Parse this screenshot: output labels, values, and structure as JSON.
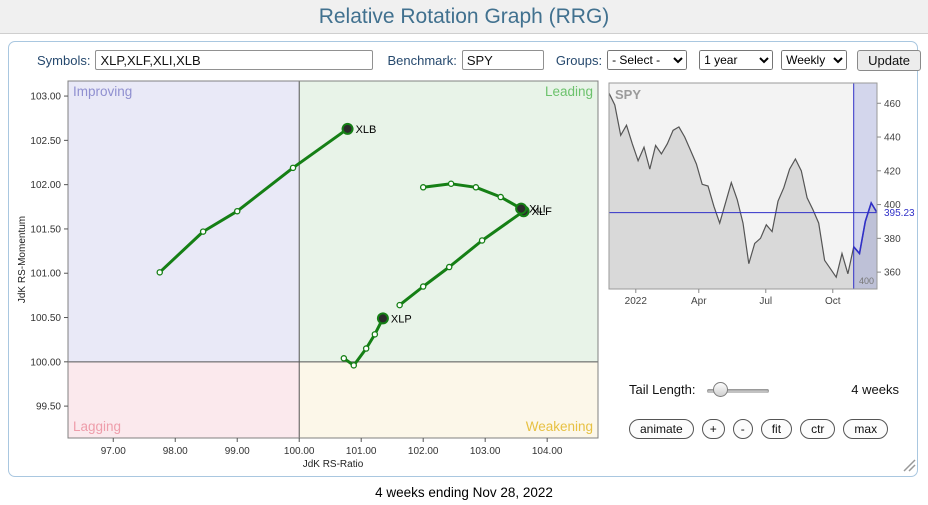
{
  "header": {
    "title": "Relative Rotation Graph (RRG)"
  },
  "toolbar": {
    "symbols_label": "Symbols:",
    "symbols_value": "XLP,XLF,XLI,XLB",
    "benchmark_label": "Benchmark:",
    "benchmark_value": "SPY",
    "groups_label": "Groups:",
    "groups_value": "- Select -",
    "period_value": "1 year",
    "frequency_value": "Weekly",
    "update_label": "Update"
  },
  "chart_data": [
    {
      "id": "rrg",
      "type": "scatter",
      "xlabel": "JdK RS-Ratio",
      "ylabel": "JdK RS-Momentum",
      "x_ticks": [
        97,
        98,
        99,
        100,
        101,
        102,
        103,
        104
      ],
      "y_ticks": [
        99.5,
        100,
        100.5,
        101,
        101.5,
        102,
        102.5,
        103
      ],
      "xlim": [
        96.27,
        104.82
      ],
      "ylim": [
        99.14,
        103.17
      ],
      "center": [
        100,
        100
      ],
      "trail_color": "#157f15",
      "quadrants": {
        "improving": {
          "label": "Improving",
          "bg": "#e9e9f7",
          "color": "#8f8fd0"
        },
        "leading": {
          "label": "Leading",
          "bg": "#e8f3e8",
          "color": "#6cc26c"
        },
        "lagging": {
          "label": "Lagging",
          "bg": "#fbe9ed",
          "color": "#ee9daa"
        },
        "weakening": {
          "label": "Weakening",
          "bg": "#fcf7e9",
          "color": "#e7c143"
        }
      },
      "series": [
        {
          "name": "XLB",
          "points": [
            [
              97.75,
              101.01
            ],
            [
              98.45,
              101.47
            ],
            [
              99.0,
              101.7
            ],
            [
              99.9,
              102.19
            ],
            [
              100.78,
              102.63
            ]
          ]
        },
        {
          "name": "XLP",
          "points": [
            [
              100.72,
              100.04
            ],
            [
              100.88,
              99.96
            ],
            [
              101.08,
              100.15
            ],
            [
              101.22,
              100.31
            ],
            [
              101.35,
              100.49
            ]
          ]
        },
        {
          "name": "XLF",
          "points": [
            [
              101.62,
              100.64
            ],
            [
              102.0,
              100.85
            ],
            [
              102.42,
              101.07
            ],
            [
              102.95,
              101.37
            ],
            [
              103.62,
              101.7
            ]
          ]
        },
        {
          "name": "XLI",
          "points": [
            [
              102.0,
              101.97
            ],
            [
              102.45,
              102.01
            ],
            [
              102.85,
              101.97
            ],
            [
              103.25,
              101.86
            ],
            [
              103.58,
              101.73
            ]
          ]
        }
      ]
    },
    {
      "id": "spy",
      "type": "area",
      "title": "SPY",
      "last_value": "395.23",
      "last_value_num": 395.23,
      "y_ticks": [
        460,
        440,
        420,
        400,
        380,
        360
      ],
      "ylim": [
        350,
        472
      ],
      "x_labels": [
        {
          "text": "2022",
          "pos": 0.1
        },
        {
          "text": "Apr",
          "pos": 0.335
        },
        {
          "text": "Jul",
          "pos": 0.585
        },
        {
          "text": "Oct",
          "pos": 0.835
        }
      ],
      "values": [
        466,
        459,
        441,
        447,
        436,
        426,
        434,
        421,
        435,
        430,
        436,
        444,
        446,
        440,
        432,
        424,
        412,
        411,
        399,
        389,
        401,
        413,
        403,
        389,
        365,
        377,
        380,
        388,
        384,
        402,
        410,
        421,
        427,
        420,
        404,
        397,
        389,
        367,
        362,
        357,
        371,
        359,
        375,
        371,
        390,
        401,
        395.23
      ],
      "tail_points": 5,
      "corner_label": "400",
      "line_color": "#555555",
      "fill_color": "#d9d9d9",
      "accent_color": "#3030c8"
    }
  ],
  "controls": {
    "tail_label": "Tail Length:",
    "tail_value": "4 weeks",
    "buttons": [
      "animate",
      "+",
      "-",
      "fit",
      "ctr",
      "max"
    ]
  },
  "footer": {
    "caption": "4 weeks ending Nov 28, 2022"
  }
}
